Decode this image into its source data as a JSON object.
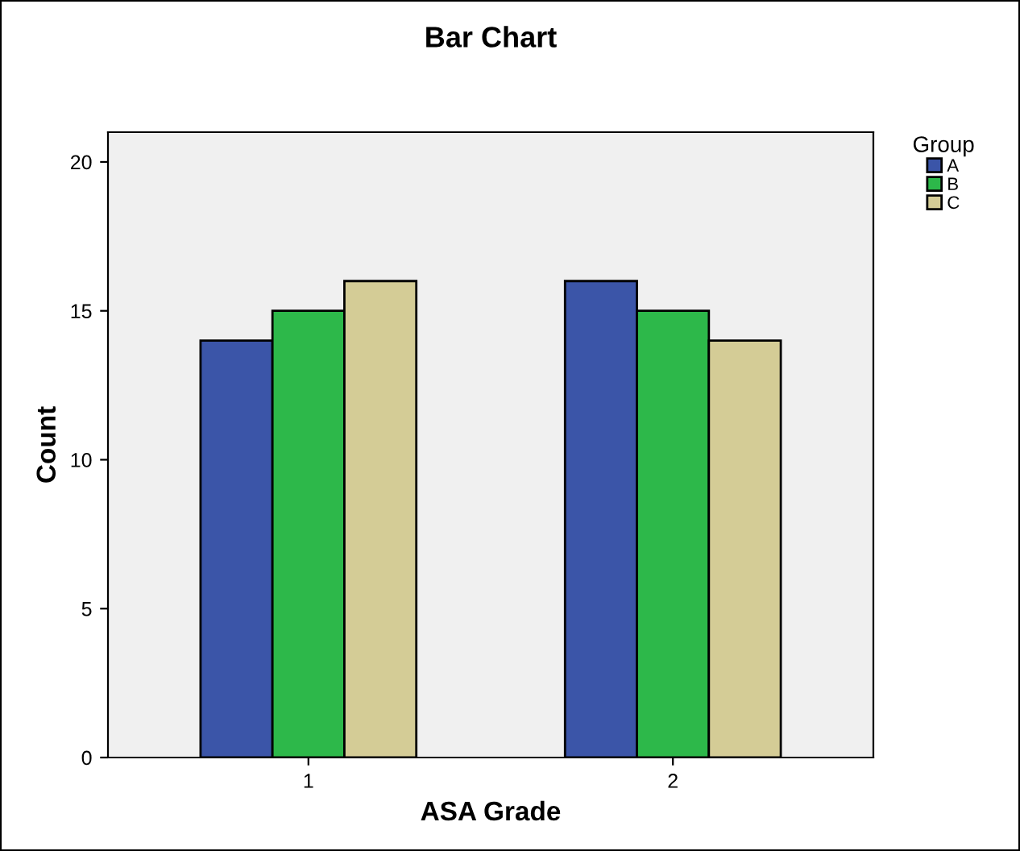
{
  "chart_data": {
    "type": "bar",
    "title": "Bar Chart",
    "xlabel": "ASA Grade",
    "ylabel": "Count",
    "legend_title": "Group",
    "categories": [
      "1",
      "2"
    ],
    "series": [
      {
        "name": "A",
        "color": "#3b55a8",
        "values": [
          14,
          16
        ]
      },
      {
        "name": "B",
        "color": "#2db84a",
        "values": [
          15,
          15
        ]
      },
      {
        "name": "C",
        "color": "#d4cc96",
        "values": [
          16,
          14
        ]
      }
    ],
    "ylim": [
      0,
      21
    ],
    "yticks": [
      0,
      5,
      10,
      15,
      20
    ],
    "grid": false,
    "legend": "top right"
  }
}
